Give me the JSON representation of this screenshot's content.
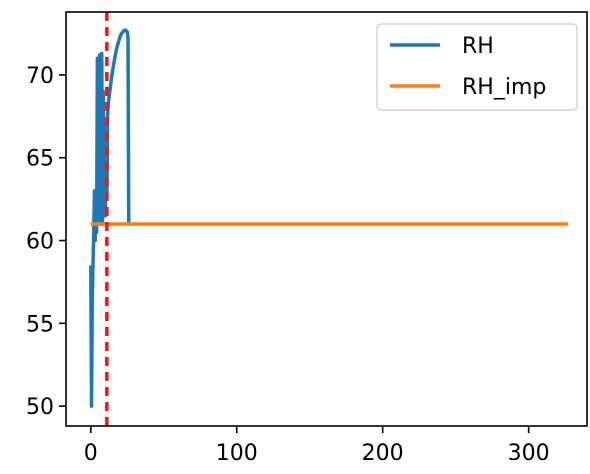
{
  "chart_data": {
    "type": "line",
    "title": "",
    "xlabel": "",
    "ylabel": "",
    "xlim": [
      -17,
      340
    ],
    "ylim": [
      48.8,
      73.8
    ],
    "x_ticks": [
      0,
      100,
      200,
      300
    ],
    "y_ticks": [
      50,
      55,
      60,
      65,
      70
    ],
    "grid": false,
    "legend": {
      "position": "top-right"
    },
    "reference_lines": [
      {
        "orientation": "vertical",
        "x": 11,
        "color": "#e41a1c",
        "style": "dashed"
      }
    ],
    "series": [
      {
        "name": "RH",
        "color": "#1f77b4",
        "x": [
          0,
          0.5,
          1,
          1.5,
          2,
          2.5,
          3,
          3.5,
          4,
          4.5,
          5,
          5.5,
          6,
          6.5,
          7,
          7.5,
          8,
          8.5,
          9,
          9.5,
          10,
          10.5,
          11,
          11.5,
          12,
          13,
          14,
          15,
          16,
          17,
          18,
          19,
          20,
          21,
          22,
          23,
          24,
          25,
          25.5,
          26,
          26.5
        ],
        "y": [
          58.5,
          50.0,
          56.5,
          58.5,
          60.5,
          63.0,
          60.0,
          62.0,
          60.5,
          71.0,
          67.0,
          64.0,
          71.2,
          61.0,
          64.0,
          71.3,
          61.0,
          69.0,
          63.0,
          67.0,
          61.5,
          66.0,
          62.5,
          67.5,
          68.3,
          69.0,
          69.7,
          70.3,
          70.8,
          71.3,
          71.7,
          72.0,
          72.3,
          72.5,
          72.6,
          72.7,
          72.7,
          72.6,
          72.2,
          61.0,
          61.0
        ]
      },
      {
        "name": "RH_imp",
        "color": "#ff7f0e",
        "x": [
          0,
          327
        ],
        "y": [
          61.0,
          61.0
        ]
      }
    ]
  }
}
